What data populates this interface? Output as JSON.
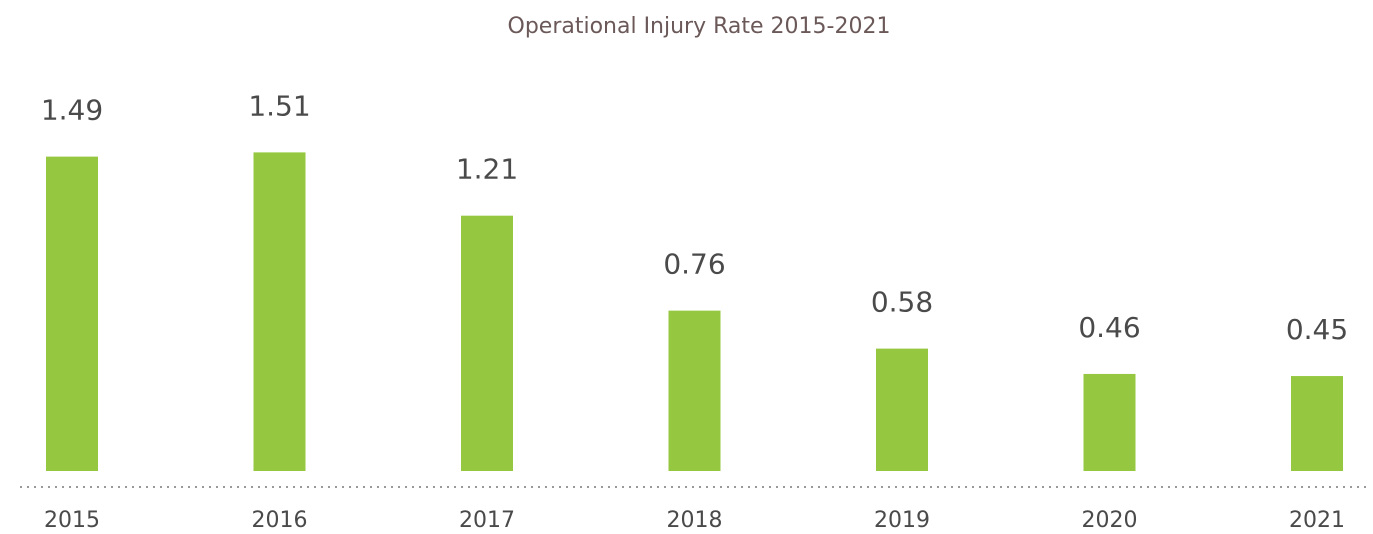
{
  "chart_data": {
    "type": "bar",
    "title": "Operational Injury Rate 2015-2021",
    "categories": [
      "2015",
      "2016",
      "2017",
      "2018",
      "2019",
      "2020",
      "2021"
    ],
    "values": [
      1.49,
      1.51,
      1.21,
      0.76,
      0.58,
      0.46,
      0.45
    ],
    "color": "#95c840",
    "ylim": [
      0,
      2.2
    ]
  }
}
